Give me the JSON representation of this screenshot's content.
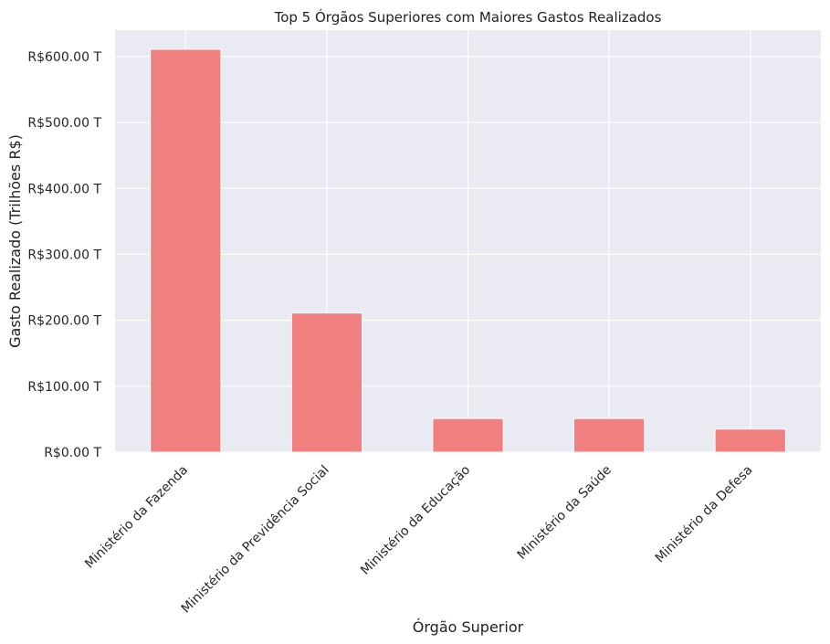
{
  "chart_data": {
    "type": "bar",
    "title": "Top 5 Órgãos Superiores com Maiores Gastos Realizados",
    "xlabel": "Órgão Superior",
    "ylabel": "Gasto Realizado (Trilhões R$)",
    "categories": [
      "Ministério da Fazenda",
      "Ministério da Previdência Social",
      "Ministério da Educação",
      "Ministério da Saúde",
      "Ministério da Defesa"
    ],
    "values": [
      611,
      211,
      51,
      51,
      35
    ],
    "ylim": [
      0,
      640
    ],
    "yticks": [
      0,
      100,
      200,
      300,
      400,
      500,
      600
    ],
    "ytick_labels": [
      "R$0.00 T",
      "R$100.00 T",
      "R$200.00 T",
      "R$300.00 T",
      "R$400.00 T",
      "R$500.00 T",
      "R$600.00 T"
    ],
    "unit": "trillions BRL",
    "grid": true,
    "colors": {
      "bar": "#F08080",
      "plot_background": "#EAEAF2",
      "grid": "#FFFFFF"
    }
  }
}
